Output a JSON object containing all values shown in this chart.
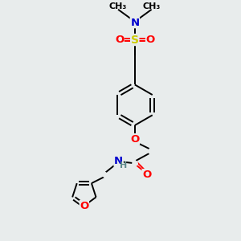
{
  "bg_color": "#e8ecec",
  "atom_colors": {
    "C": "#000000",
    "N": "#0000cd",
    "O": "#ff0000",
    "S": "#cccc00",
    "H": "#5f8a8b"
  },
  "bond_color": "#000000",
  "font_size_atom": 8.5,
  "fig_size": [
    3.0,
    3.0
  ],
  "dpi": 100
}
